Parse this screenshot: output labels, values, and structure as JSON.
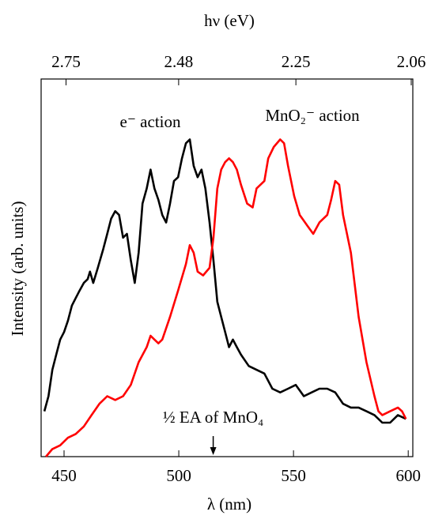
{
  "chart_data": {
    "type": "line",
    "title": "hν (eV)",
    "xlabel": "λ (nm)",
    "ylabel": "Intensity (arb. units)",
    "xlim": [
      440,
      602
    ],
    "xticks": [
      450,
      500,
      550,
      600
    ],
    "x2ticks": [
      2.75,
      2.48,
      2.25,
      2.06
    ],
    "ylim": [
      0,
      1
    ],
    "grid": false,
    "series": [
      {
        "name": "e⁻ action",
        "color": "#000000",
        "x": [
          441.4,
          443.2,
          444.9,
          446.6,
          448.3,
          450,
          451.7,
          453.4,
          455.1,
          456.8,
          458.6,
          460.3,
          461.3,
          462.7,
          464.7,
          467.1,
          468.8,
          470.5,
          472.3,
          474,
          475.7,
          477.4,
          479.1,
          480.8,
          482.5,
          484.2,
          486,
          487.7,
          489.4,
          491.1,
          492.8,
          494.5,
          496.2,
          497.9,
          499.7,
          501.4,
          503.1,
          504.8,
          506.5,
          508.2,
          509.9,
          511.6,
          513.4,
          515.1,
          516.8,
          518.5,
          520.2,
          521.9,
          523.6,
          525.3,
          527.1,
          530.5,
          533.9,
          537.3,
          540.8,
          544.2,
          547.6,
          551,
          554.5,
          557.9,
          561.3,
          564.7,
          568.2,
          571.6,
          575,
          578.4,
          581.8,
          585.3,
          588.7,
          592.1,
          595.5,
          599
        ],
        "values": [
          0.12,
          0.16,
          0.23,
          0.27,
          0.31,
          0.33,
          0.36,
          0.4,
          0.42,
          0.44,
          0.46,
          0.47,
          0.49,
          0.46,
          0.5,
          0.55,
          0.59,
          0.63,
          0.65,
          0.64,
          0.58,
          0.59,
          0.52,
          0.46,
          0.54,
          0.67,
          0.71,
          0.76,
          0.71,
          0.68,
          0.64,
          0.62,
          0.67,
          0.73,
          0.74,
          0.79,
          0.83,
          0.84,
          0.77,
          0.74,
          0.76,
          0.71,
          0.62,
          0.52,
          0.41,
          0.37,
          0.33,
          0.29,
          0.31,
          0.29,
          0.27,
          0.24,
          0.23,
          0.22,
          0.18,
          0.17,
          0.18,
          0.19,
          0.16,
          0.17,
          0.18,
          0.18,
          0.17,
          0.14,
          0.13,
          0.13,
          0.12,
          0.11,
          0.09,
          0.09,
          0.11,
          0.1
        ]
      },
      {
        "name": "MnO₂⁻ action",
        "color": "#ff0000",
        "x": [
          442.1,
          444.9,
          448.3,
          451.7,
          455.1,
          458.6,
          462,
          465.4,
          468.8,
          472.3,
          475.7,
          479.1,
          482.5,
          486,
          487.7,
          489.4,
          491.1,
          492.8,
          496.2,
          499.7,
          503.1,
          504.8,
          506.5,
          508.2,
          510.6,
          513.4,
          515.1,
          516.8,
          518.5,
          520.2,
          521.9,
          523.6,
          525.3,
          527.1,
          529.8,
          532.2,
          533.9,
          537.3,
          539,
          541.4,
          544.2,
          545.9,
          547.6,
          550.3,
          552.7,
          556.2,
          558.6,
          561.3,
          564.7,
          566.4,
          568.2,
          569.9,
          571.6,
          575,
          578.4,
          581.8,
          585.3,
          587,
          588.7,
          592.1,
          595.5,
          597.3,
          599
        ],
        "values": [
          0,
          0.02,
          0.03,
          0.05,
          0.06,
          0.08,
          0.11,
          0.14,
          0.16,
          0.15,
          0.16,
          0.19,
          0.25,
          0.29,
          0.32,
          0.31,
          0.3,
          0.31,
          0.37,
          0.44,
          0.51,
          0.56,
          0.54,
          0.49,
          0.48,
          0.5,
          0.58,
          0.71,
          0.76,
          0.78,
          0.79,
          0.78,
          0.76,
          0.72,
          0.67,
          0.66,
          0.71,
          0.73,
          0.79,
          0.82,
          0.84,
          0.83,
          0.77,
          0.69,
          0.64,
          0.61,
          0.59,
          0.62,
          0.64,
          0.68,
          0.73,
          0.72,
          0.64,
          0.54,
          0.37,
          0.25,
          0.16,
          0.12,
          0.11,
          0.12,
          0.13,
          0.12,
          0.1
        ]
      }
    ],
    "annotation": {
      "text": "½ EA of MnO₄",
      "x": 515
    }
  }
}
